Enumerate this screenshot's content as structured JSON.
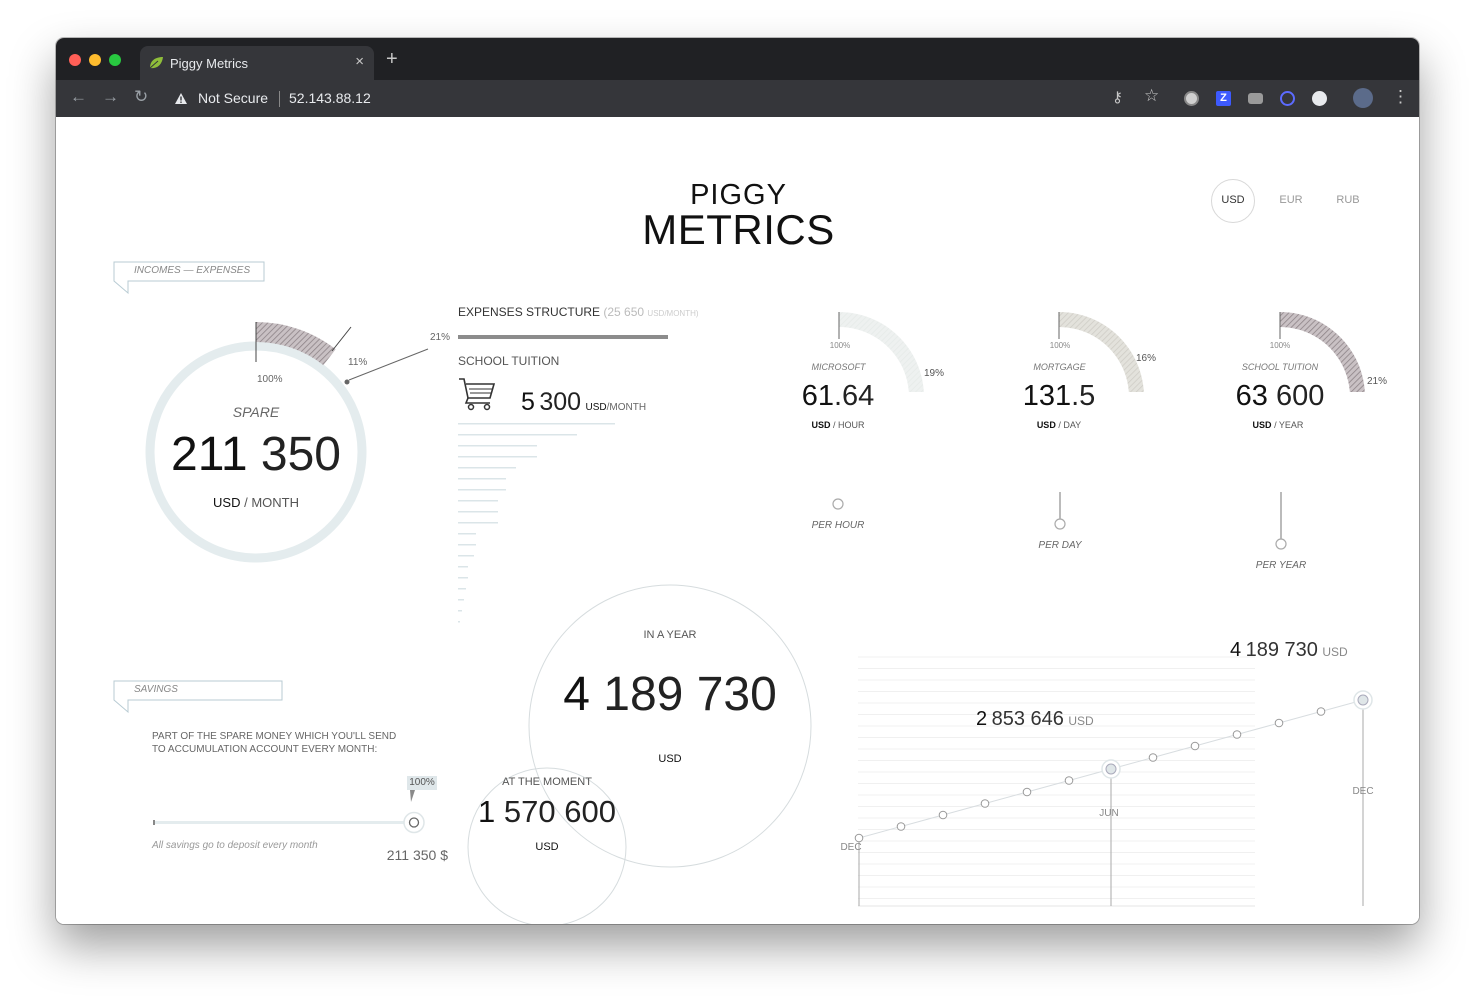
{
  "browser": {
    "tab_title": "Piggy Metrics",
    "tab_close": "×",
    "new_tab": "+",
    "security_label": "Not Secure",
    "url": "52.143.88.12",
    "back": "←",
    "forward": "→",
    "reload": "↻",
    "menu": "⋮",
    "key": "⚷",
    "star": "☆",
    "ext_z": "Z"
  },
  "logo": {
    "line1": "PIGGY",
    "line2": "METRICS"
  },
  "currency": {
    "options": [
      "USD",
      "EUR",
      "RUB"
    ],
    "selected": "USD"
  },
  "incomes_tab": "INCOMES — EXPENSES",
  "spare": {
    "label": "SPARE",
    "value_big": "211",
    "value_rest": "350",
    "unit": "USD",
    "period": "/ MONTH",
    "pct_100": "100%",
    "pct_11": "11%",
    "pct_21": "21%",
    "expense_share": 0.21
  },
  "expenses": {
    "title": "EXPENSES STRUCTURE",
    "total_paren": "(25 650",
    "total_unit": "USD",
    "total_suffix": "/MONTH)",
    "top_name": "SCHOOL TUITION",
    "top_value_big": "5",
    "top_value_rest": "300",
    "top_unit": "USD",
    "top_period": "/MONTH",
    "bar_lengths": [
      157,
      119,
      79,
      79,
      58,
      48,
      48,
      40,
      40,
      40,
      18,
      18,
      16,
      10,
      10,
      8,
      6,
      4,
      2
    ]
  },
  "mini_stats": [
    {
      "name": "MICROSOFT",
      "pct_100": "100%",
      "pct": "19%",
      "share": 0.19,
      "big": "61",
      "rest": ".64",
      "unit": "USD",
      "period": "/ HOUR",
      "slider_label": "PER HOUR"
    },
    {
      "name": "MORTGAGE",
      "pct_100": "100%",
      "pct": "16%",
      "share": 0.16,
      "big": "131",
      "rest": ".5",
      "unit": "USD",
      "period": "/ DAY",
      "slider_label": "PER DAY"
    },
    {
      "name": "SCHOOL TUITION",
      "pct_100": "100%",
      "pct": "21%",
      "share": 0.21,
      "big": "63",
      "rest": "600",
      "unit": "USD",
      "period": "/ YEAR",
      "slider_label": "PER YEAR"
    }
  ],
  "year_circle": {
    "label": "IN A YEAR",
    "big": "4",
    "rest": "189 730",
    "unit": "USD"
  },
  "moment_circle": {
    "label": "AT THE MOMENT",
    "big": "1",
    "rest": "570 600",
    "unit": "USD"
  },
  "savings": {
    "tab": "SAVINGS",
    "desc_line1": "PART OF THE SPARE MONEY WHICH YOU'LL SEND",
    "desc_line2": "TO ACCUMULATION ACCOUNT EVERY MONTH:",
    "slider_pct_label": "100%",
    "slider_value": 1.0,
    "note": "All savings go to deposit every month",
    "amount": "211 350 $"
  },
  "growth_chart": {
    "start_label": "DEC",
    "mid_label": "JUN",
    "end_label": "DEC",
    "mid_value_big": "2",
    "mid_value_rest": "853 646",
    "mid_unit": "USD",
    "end_value_big": "4",
    "end_value_rest": "189 730",
    "end_unit": "USD"
  }
}
